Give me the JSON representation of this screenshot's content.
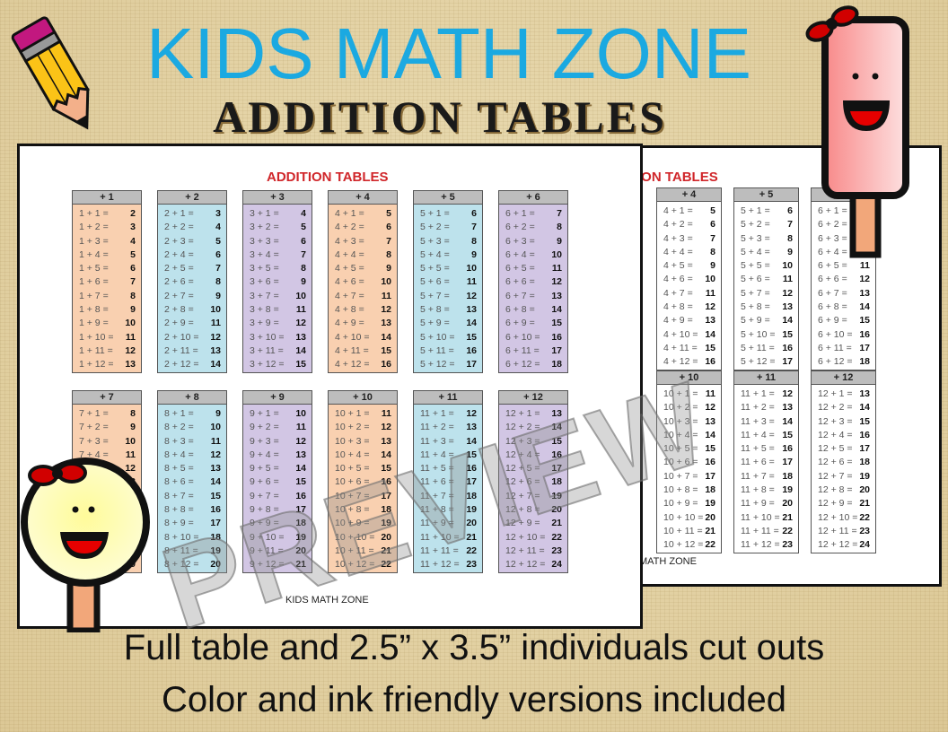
{
  "header": {
    "title": "KIDS MATH ZONE",
    "subtitle": "ADDITION TABLES"
  },
  "front_sheet": {
    "title": "ADDITION TABLES",
    "footer": "KIDS MATH ZONE",
    "watermark": "PREVIEW",
    "tables": [
      {
        "header": "+ 1",
        "rows": [
          [
            "1 + 1 =",
            "2"
          ],
          [
            "1 + 2 =",
            "3"
          ],
          [
            "1 + 3 =",
            "4"
          ],
          [
            "1 + 4 =",
            "5"
          ],
          [
            "1 + 5 =",
            "6"
          ],
          [
            "1 + 6 =",
            "7"
          ],
          [
            "1 + 7 =",
            "8"
          ],
          [
            "1 + 8 =",
            "9"
          ],
          [
            "1 + 9 =",
            "10"
          ],
          [
            "1 + 10 =",
            "11"
          ],
          [
            "1 + 11 =",
            "12"
          ],
          [
            "1 + 12 =",
            "13"
          ]
        ]
      },
      {
        "header": "+ 2",
        "rows": [
          [
            "2 + 1 =",
            "3"
          ],
          [
            "2 + 2 =",
            "4"
          ],
          [
            "2 + 3 =",
            "5"
          ],
          [
            "2 + 4 =",
            "6"
          ],
          [
            "2 + 5 =",
            "7"
          ],
          [
            "2 + 6 =",
            "8"
          ],
          [
            "2 + 7 =",
            "9"
          ],
          [
            "2 + 8 =",
            "10"
          ],
          [
            "2 + 9 =",
            "11"
          ],
          [
            "2 + 10 =",
            "12"
          ],
          [
            "2 + 11 =",
            "13"
          ],
          [
            "2 + 12 =",
            "14"
          ]
        ]
      },
      {
        "header": "+ 3",
        "rows": [
          [
            "3 + 1 =",
            "4"
          ],
          [
            "3 + 2 =",
            "5"
          ],
          [
            "3 + 3 =",
            "6"
          ],
          [
            "3 + 4 =",
            "7"
          ],
          [
            "3 + 5 =",
            "8"
          ],
          [
            "3 + 6 =",
            "9"
          ],
          [
            "3 + 7 =",
            "10"
          ],
          [
            "3 + 8 =",
            "11"
          ],
          [
            "3 + 9 =",
            "12"
          ],
          [
            "3 + 10 =",
            "13"
          ],
          [
            "3 + 11 =",
            "14"
          ],
          [
            "3 + 12 =",
            "15"
          ]
        ]
      },
      {
        "header": "+ 4",
        "rows": [
          [
            "4 + 1 =",
            "5"
          ],
          [
            "4 + 2 =",
            "6"
          ],
          [
            "4 + 3 =",
            "7"
          ],
          [
            "4 + 4 =",
            "8"
          ],
          [
            "4 + 5 =",
            "9"
          ],
          [
            "4 + 6 =",
            "10"
          ],
          [
            "4 + 7 =",
            "11"
          ],
          [
            "4 + 8 =",
            "12"
          ],
          [
            "4 + 9 =",
            "13"
          ],
          [
            "4 + 10 =",
            "14"
          ],
          [
            "4 + 11 =",
            "15"
          ],
          [
            "4 + 12 =",
            "16"
          ]
        ]
      },
      {
        "header": "+ 5",
        "rows": [
          [
            "5 + 1 =",
            "6"
          ],
          [
            "5 + 2 =",
            "7"
          ],
          [
            "5 + 3 =",
            "8"
          ],
          [
            "5 + 4 =",
            "9"
          ],
          [
            "5 + 5 =",
            "10"
          ],
          [
            "5 + 6 =",
            "11"
          ],
          [
            "5 + 7 =",
            "12"
          ],
          [
            "5 + 8 =",
            "13"
          ],
          [
            "5 + 9 =",
            "14"
          ],
          [
            "5 + 10 =",
            "15"
          ],
          [
            "5 + 11 =",
            "16"
          ],
          [
            "5 + 12 =",
            "17"
          ]
        ]
      },
      {
        "header": "+ 6",
        "rows": [
          [
            "6 + 1 =",
            "7"
          ],
          [
            "6 + 2 =",
            "8"
          ],
          [
            "6 + 3 =",
            "9"
          ],
          [
            "6 + 4 =",
            "10"
          ],
          [
            "6 + 5 =",
            "11"
          ],
          [
            "6 + 6 =",
            "12"
          ],
          [
            "6 + 7 =",
            "13"
          ],
          [
            "6 + 8 =",
            "14"
          ],
          [
            "6 + 9 =",
            "15"
          ],
          [
            "6 + 10 =",
            "16"
          ],
          [
            "6 + 11 =",
            "17"
          ],
          [
            "6 + 12 =",
            "18"
          ]
        ]
      },
      {
        "header": "+ 7",
        "rows": [
          [
            "7 + 1 =",
            "8"
          ],
          [
            "7 + 2 =",
            "9"
          ],
          [
            "7 + 3 =",
            "10"
          ],
          [
            "7 + 4 =",
            "11"
          ],
          [
            "7 + 5 =",
            "12"
          ],
          [
            "7 + 6 =",
            "13"
          ],
          [
            "7 + 7 =",
            "14"
          ],
          [
            "7 + 8 =",
            "15"
          ],
          [
            "7 + 9 =",
            "16"
          ],
          [
            "7 + 10 =",
            "17"
          ],
          [
            "7 + 11 =",
            "18"
          ],
          [
            "7 + 12 =",
            "19"
          ]
        ]
      },
      {
        "header": "+ 8",
        "rows": [
          [
            "8 + 1 =",
            "9"
          ],
          [
            "8 + 2 =",
            "10"
          ],
          [
            "8 + 3 =",
            "11"
          ],
          [
            "8 + 4 =",
            "12"
          ],
          [
            "8 + 5 =",
            "13"
          ],
          [
            "8 + 6 =",
            "14"
          ],
          [
            "8 + 7 =",
            "15"
          ],
          [
            "8 + 8 =",
            "16"
          ],
          [
            "8 + 9 =",
            "17"
          ],
          [
            "8 + 10 =",
            "18"
          ],
          [
            "8 + 11 =",
            "19"
          ],
          [
            "8 + 12 =",
            "20"
          ]
        ]
      },
      {
        "header": "+ 9",
        "rows": [
          [
            "9 + 1 =",
            "10"
          ],
          [
            "9 + 2 =",
            "11"
          ],
          [
            "9 + 3 =",
            "12"
          ],
          [
            "9 + 4 =",
            "13"
          ],
          [
            "9 + 5 =",
            "14"
          ],
          [
            "9 + 6 =",
            "15"
          ],
          [
            "9 + 7 =",
            "16"
          ],
          [
            "9 + 8 =",
            "17"
          ],
          [
            "9 + 9 =",
            "18"
          ],
          [
            "9 + 10 =",
            "19"
          ],
          [
            "9 + 11 =",
            "20"
          ],
          [
            "9 + 12 =",
            "21"
          ]
        ]
      },
      {
        "header": "+ 10",
        "rows": [
          [
            "10 + 1 =",
            "11"
          ],
          [
            "10 + 2 =",
            "12"
          ],
          [
            "10 + 3 =",
            "13"
          ],
          [
            "10 + 4 =",
            "14"
          ],
          [
            "10 + 5 =",
            "15"
          ],
          [
            "10 + 6 =",
            "16"
          ],
          [
            "10 + 7 =",
            "17"
          ],
          [
            "10 + 8 =",
            "18"
          ],
          [
            "10 + 9 =",
            "19"
          ],
          [
            "10 + 10 =",
            "20"
          ],
          [
            "10 + 11 =",
            "21"
          ],
          [
            "10 + 12 =",
            "22"
          ]
        ]
      },
      {
        "header": "+ 11",
        "rows": [
          [
            "11 + 1 =",
            "12"
          ],
          [
            "11 + 2 =",
            "13"
          ],
          [
            "11 + 3 =",
            "14"
          ],
          [
            "11 + 4 =",
            "15"
          ],
          [
            "11 + 5 =",
            "16"
          ],
          [
            "11 + 6 =",
            "17"
          ],
          [
            "11 + 7 =",
            "18"
          ],
          [
            "11 + 8 =",
            "19"
          ],
          [
            "11 + 9 =",
            "20"
          ],
          [
            "11 + 10 =",
            "21"
          ],
          [
            "11 + 11 =",
            "22"
          ],
          [
            "11 + 12 =",
            "23"
          ]
        ]
      },
      {
        "header": "+ 12",
        "rows": [
          [
            "12 + 1 =",
            "13"
          ],
          [
            "12 + 2 =",
            "14"
          ],
          [
            "12 + 3 =",
            "15"
          ],
          [
            "12 + 4 =",
            "16"
          ],
          [
            "12 + 5 =",
            "17"
          ],
          [
            "12 + 6 =",
            "18"
          ],
          [
            "12 + 7 =",
            "19"
          ],
          [
            "12 + 8 =",
            "20"
          ],
          [
            "12 + 9 =",
            "21"
          ],
          [
            "12 + 10 =",
            "22"
          ],
          [
            "12 + 11 =",
            "23"
          ],
          [
            "12 + 12 =",
            "24"
          ]
        ]
      }
    ]
  },
  "back_sheet": {
    "title": "ION TABLES",
    "footer": "MATH ZONE"
  },
  "colors": {
    "title": "#1ba9e1",
    "sheet_title": "#d0262a",
    "orange": "#f9d0b0",
    "blue": "#bde2ec",
    "purple": "#d2c6e4",
    "header_gray": "#bdbdbd"
  },
  "decorations": [
    "pencil-icon",
    "popsicle-character",
    "lollipop-girl-character"
  ],
  "captions": [
    "Full table and 2.5” x 3.5” individuals cut outs",
    "Color and ink friendly versions included"
  ]
}
